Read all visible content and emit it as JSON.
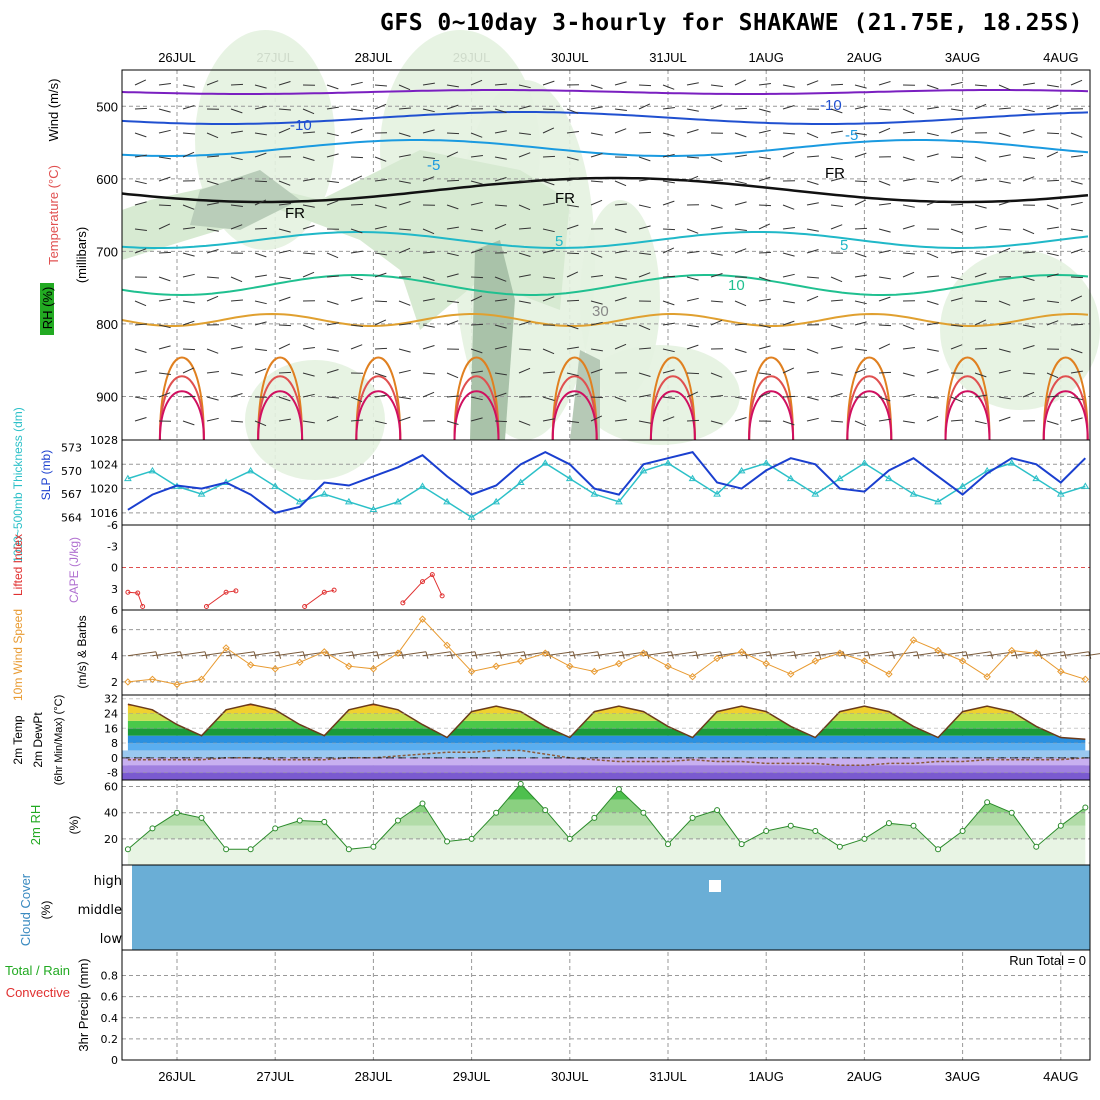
{
  "title": "GFS 0~10day 3-hourly for SHAKAWE (21.75E, 18.25S)",
  "dates": [
    "26JUL",
    "27JUL",
    "28JUL",
    "29JUL",
    "30JUL",
    "31JUL",
    "1AUG",
    "2AUG",
    "3AUG",
    "4AUG"
  ],
  "colors": {
    "grid": "#999999",
    "frame": "#000000",
    "slp": "#1a3fcf",
    "thickness": "#2cc0c8",
    "lifted": "#e03030",
    "wind10": "#e89a30",
    "barb": "#7a5a3a",
    "rh_line": "#2a8a2a",
    "rh_fill": "#59c959",
    "cloud": "#6aaed6",
    "dewpt": "#8a5a3a"
  },
  "panels": {
    "upper": {
      "ylabel_wind": "Wind (m/s)",
      "ylabel_temp": "Temperature (°C)",
      "ylabel_rh": "RH (%)",
      "ylabel_mb": "(millibars)",
      "yticks": [
        "500",
        "600",
        "700",
        "800",
        "900"
      ],
      "contour_labels": [
        "-10",
        "-10",
        "-5",
        "-5",
        "FR",
        "FR",
        "FR",
        "5",
        "5",
        "10",
        "30"
      ]
    },
    "slp": {
      "ylabel_thick": "1000~500mb Thickness (dm)",
      "ylabel_slp": "SLP (mb)",
      "thick_ticks": [
        "573",
        "570",
        "567",
        "564"
      ],
      "slp_ticks": [
        "1028",
        "1024",
        "1020",
        "1016"
      ]
    },
    "cape": {
      "ylabel_li": "Lifted Index",
      "ylabel_cape": "CAPE (J/kg)",
      "yticks": [
        "-6",
        "-3",
        "0",
        "3",
        "6"
      ]
    },
    "wind": {
      "ylabel": "10m Wind Speed",
      "ylabel2": "(m/s) & Barbs",
      "yticks": [
        "6",
        "4",
        "2"
      ]
    },
    "temp": {
      "ylabel1": "2m Temp",
      "ylabel2": "2m DewPt",
      "ylabel3": "(6hr Min/Max) (°C)",
      "yticks": [
        "32",
        "24",
        "16",
        "8",
        "0",
        "-8"
      ]
    },
    "rh": {
      "ylabel": "2m RH",
      "ylabel2": "(%)",
      "yticks": [
        "60",
        "40",
        "20"
      ]
    },
    "cloud": {
      "ylabel": "Cloud Cover",
      "ylabel2": "(%)",
      "levels": [
        "high",
        "middle",
        "low"
      ]
    },
    "precip": {
      "ylabel_total": "Total / Rain",
      "ylabel_conv": "Convective",
      "ylabel": "3hr Precip (mm)",
      "yticks": [
        "0.8",
        "0.6",
        "0.4",
        "0.2",
        "0"
      ],
      "run_total": "Run Total = 0"
    }
  },
  "chart_data": [
    {
      "type": "line",
      "title": "SLP (mb)",
      "x_unit": "days from 26JUL 00Z",
      "x": [
        -0.5,
        -0.25,
        0,
        0.25,
        0.5,
        0.75,
        1,
        1.25,
        1.5,
        1.75,
        2,
        2.25,
        2.5,
        2.75,
        3,
        3.25,
        3.5,
        3.75,
        4,
        4.25,
        4.5,
        4.75,
        5,
        5.25,
        5.5,
        5.75,
        6,
        6.25,
        6.5,
        6.75,
        7,
        7.25,
        7.5,
        7.75,
        8,
        8.25,
        8.5,
        8.75,
        9,
        9.25
      ],
      "series": [
        {
          "name": "SLP",
          "values": [
            1016.5,
            1019,
            1020.5,
            1020,
            1021,
            1019,
            1016,
            1017,
            1021,
            1020.5,
            1022,
            1023.5,
            1025.5,
            1022,
            1019,
            1020.5,
            1024,
            1026,
            1024,
            1020,
            1019,
            1024,
            1025,
            1026,
            1021,
            1020,
            1023,
            1025,
            1024,
            1020,
            1019.5,
            1023,
            1025,
            1022,
            1019,
            1022.5,
            1025,
            1024,
            1021,
            1025
          ]
        }
      ],
      "ylim": [
        1014,
        1028
      ]
    },
    {
      "type": "line",
      "title": "1000~500mb Thickness (dm)",
      "x_unit": "days from 26JUL 00Z",
      "x": [
        -0.5,
        -0.25,
        0,
        0.25,
        0.5,
        0.75,
        1,
        1.25,
        1.5,
        1.75,
        2,
        2.25,
        2.5,
        2.75,
        3,
        3.25,
        3.5,
        3.75,
        4,
        4.25,
        4.5,
        4.75,
        5,
        5.25,
        5.5,
        5.75,
        6,
        6.25,
        6.5,
        6.75,
        7,
        7.25,
        7.5,
        7.75,
        8,
        8.25,
        8.5,
        8.75,
        9,
        9.25
      ],
      "series": [
        {
          "name": "Thickness",
          "values": [
            569,
            570,
            568,
            567,
            568.5,
            570,
            568,
            566,
            567,
            566,
            565,
            566,
            568,
            566,
            564,
            566,
            568.5,
            571,
            569,
            567,
            566,
            570,
            571,
            569,
            567,
            570,
            571,
            569,
            567,
            569,
            571,
            569,
            567,
            566,
            568,
            570,
            571,
            569,
            567,
            568
          ]
        }
      ],
      "ylim": [
        563,
        574
      ]
    },
    {
      "type": "line",
      "title": "Lifted Index",
      "x_unit": "days from 26JUL 00Z",
      "x": [
        -0.5,
        -0.4,
        -0.35,
        0.3,
        0.5,
        0.6,
        1.3,
        1.5,
        1.6,
        2.3,
        2.5,
        2.6,
        2.7
      ],
      "series": [
        {
          "name": "Lifted Index",
          "values": [
            3.5,
            3.6,
            5.5,
            5.5,
            3.5,
            3.3,
            5.5,
            3.5,
            3.2,
            5,
            2,
            1,
            4
          ]
        }
      ],
      "ylim": [
        6,
        -6
      ]
    },
    {
      "type": "line",
      "title": "10m Wind Speed (m/s)",
      "x_unit": "days from 26JUL 00Z",
      "x": [
        -0.5,
        -0.25,
        0,
        0.25,
        0.5,
        0.75,
        1,
        1.25,
        1.5,
        1.75,
        2,
        2.25,
        2.5,
        2.75,
        3,
        3.25,
        3.5,
        3.75,
        4,
        4.25,
        4.5,
        4.75,
        5,
        5.25,
        5.5,
        5.75,
        6,
        6.25,
        6.5,
        6.75,
        7,
        7.25,
        7.5,
        7.75,
        8,
        8.25,
        8.5,
        8.75,
        9,
        9.25
      ],
      "series": [
        {
          "name": "10m Wind Speed",
          "values": [
            2,
            2.2,
            1.8,
            2.2,
            4.6,
            3.3,
            3,
            3.5,
            4.3,
            3.2,
            3,
            4.2,
            6.8,
            4.8,
            2.8,
            3.2,
            3.6,
            4.2,
            3.2,
            2.8,
            3.4,
            4.2,
            3.2,
            2.4,
            3.8,
            4.3,
            3.4,
            2.6,
            3.6,
            4.2,
            3.6,
            2.6,
            5.2,
            4.4,
            3.6,
            2.4,
            4.4,
            4.2,
            2.8,
            2.2
          ]
        }
      ],
      "ylim": [
        1,
        7.5
      ]
    },
    {
      "type": "area",
      "title": "2m Temp (°C)",
      "x_unit": "days from 26JUL 00Z",
      "x": [
        -0.5,
        -0.25,
        0,
        0.25,
        0.5,
        0.75,
        1,
        1.25,
        1.5,
        1.75,
        2,
        2.25,
        2.5,
        2.75,
        3,
        3.25,
        3.5,
        3.75,
        4,
        4.25,
        4.5,
        4.75,
        5,
        5.25,
        5.5,
        5.75,
        6,
        6.25,
        6.5,
        6.75,
        7,
        7.25,
        7.5,
        7.75,
        8,
        8.25,
        8.5,
        8.75,
        9,
        9.25
      ],
      "series": [
        {
          "name": "2m Temp",
          "values": [
            29,
            26,
            18,
            12,
            26,
            29,
            26,
            18,
            12,
            26,
            29,
            26,
            18,
            11,
            25,
            28,
            25,
            17,
            11,
            25,
            28,
            25,
            17,
            11,
            25,
            28,
            25,
            17,
            11,
            25,
            28,
            25,
            17,
            11,
            25,
            28,
            25,
            17,
            11,
            10
          ]
        },
        {
          "name": "2m DewPt",
          "values": [
            -1,
            -1,
            -1,
            -1,
            0,
            0,
            -1,
            -1,
            -1,
            0,
            0,
            1,
            2,
            3,
            3,
            4,
            4,
            2,
            0,
            -1,
            -2,
            -2,
            -2,
            -1,
            -2,
            -2,
            -3,
            -3,
            -3,
            -4,
            -4,
            -3,
            -3,
            -2,
            -2,
            -1,
            -1,
            -1,
            -1,
            0
          ]
        }
      ],
      "ylim": [
        -12,
        34
      ]
    },
    {
      "type": "area",
      "title": "2m RH (%)",
      "x_unit": "days from 26JUL 00Z",
      "x": [
        -0.5,
        -0.25,
        0,
        0.25,
        0.5,
        0.75,
        1,
        1.25,
        1.5,
        1.75,
        2,
        2.25,
        2.5,
        2.75,
        3,
        3.25,
        3.5,
        3.75,
        4,
        4.25,
        4.5,
        4.75,
        5,
        5.25,
        5.5,
        5.75,
        6,
        6.25,
        6.5,
        6.75,
        7,
        7.25,
        7.5,
        7.75,
        8,
        8.25,
        8.5,
        8.75,
        9,
        9.25
      ],
      "series": [
        {
          "name": "2m RH",
          "values": [
            12,
            28,
            40,
            36,
            12,
            12,
            28,
            34,
            33,
            12,
            14,
            34,
            47,
            18,
            20,
            40,
            62,
            42,
            20,
            36,
            58,
            40,
            16,
            36,
            42,
            16,
            26,
            30,
            26,
            14,
            20,
            32,
            30,
            12,
            26,
            48,
            40,
            14,
            30,
            44
          ]
        }
      ],
      "ylim": [
        0,
        65
      ]
    },
    {
      "type": "bar",
      "title": "3hr Precip (mm)",
      "series": [
        {
          "name": "Total / Rain",
          "values": []
        },
        {
          "name": "Convective",
          "values": []
        }
      ],
      "ylim": [
        0,
        1
      ]
    }
  ]
}
